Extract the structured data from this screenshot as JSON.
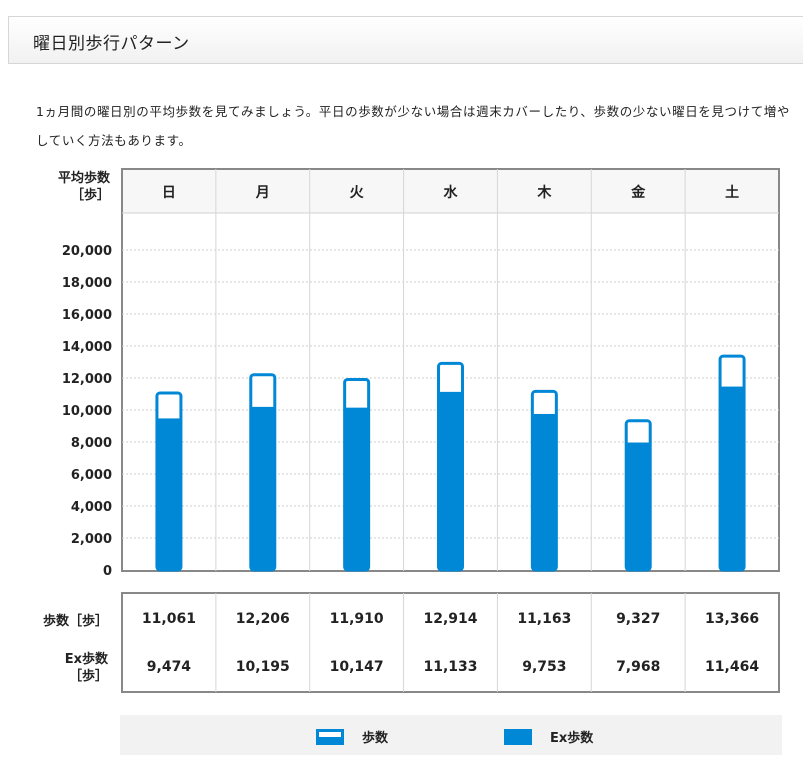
{
  "section": {
    "title": "曜日別歩行パターン"
  },
  "description": "1ヵ月間の曜日別の平均歩数を見てみましょう。平日の歩数が少ない場合は週末カバーしたり、歩数の少ない曜日を見つけて増やしていく方法もあります。",
  "table": {
    "y_header": [
      "平均歩数",
      "［歩］"
    ],
    "row_steps_label": "歩数［歩］",
    "row_ex_label": [
      "Ex歩数",
      "［歩］"
    ],
    "steps_display": [
      "11,061",
      "12,206",
      "11,910",
      "12,914",
      "11,163",
      "9,327",
      "13,366"
    ],
    "ex_display": [
      "9,474",
      "10,195",
      "10,147",
      "11,133",
      "9,753",
      "7,968",
      "11,464"
    ]
  },
  "legend": {
    "steps": "歩数",
    "ex_steps": "Ex歩数"
  },
  "colors": {
    "bar": "#0088d6",
    "border": "#888888",
    "grid": "#cfcfcf"
  },
  "chart_data": {
    "type": "bar",
    "categories": [
      "日",
      "月",
      "火",
      "水",
      "木",
      "金",
      "土"
    ],
    "series": [
      {
        "name": "歩数",
        "values": [
          11061,
          12206,
          11910,
          12914,
          11163,
          9327,
          13366
        ]
      },
      {
        "name": "Ex歩数",
        "values": [
          9474,
          10195,
          10147,
          11133,
          9753,
          7968,
          11464
        ]
      }
    ],
    "ylim": [
      0,
      20000
    ],
    "yticks": [
      "0",
      "2,000",
      "4,000",
      "6,000",
      "8,000",
      "10,000",
      "12,000",
      "14,000",
      "16,000",
      "18,000",
      "20,000"
    ],
    "ylabel": "平均歩数［歩］",
    "grid": true,
    "legend_position": "bottom"
  }
}
